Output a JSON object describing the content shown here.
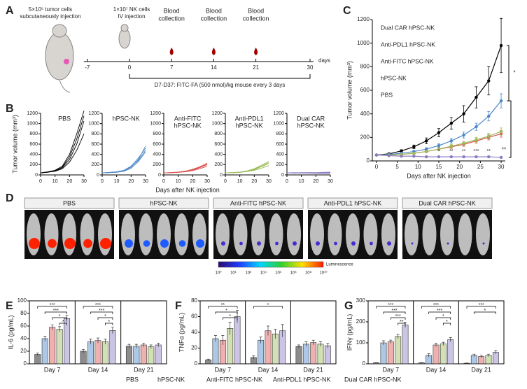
{
  "panel_labels": [
    "A",
    "B",
    "C",
    "D",
    "E",
    "F",
    "G"
  ],
  "timeline": {
    "tumor_note": [
      "5×10⁵ tumor cells",
      "subcutaneously injection"
    ],
    "nk_note": [
      "1×10⁷ NK cells",
      "IV injection"
    ],
    "blood_notes": [
      [
        "Blood",
        "collection"
      ],
      [
        "Blood",
        "collection"
      ],
      [
        "Blood",
        "collection"
      ]
    ],
    "ticks": [
      -7,
      0,
      7,
      14,
      21,
      30
    ],
    "unit": "days",
    "treatment": "D7-D37: FITC-FA (500 nmol)/kg mouse every 3 days"
  },
  "imaging": {
    "groups": [
      "PBS",
      "hPSC-NK",
      "Anti-FITC hPSC-NK",
      "Anti-PDL1 hPSC-NK",
      "Dual CAR hPSC-NK"
    ],
    "colorbar_ticks": [
      "10⁰",
      "10¹",
      "10²",
      "10⁴",
      "10⁵",
      "10⁶",
      "10⁸",
      "10¹⁰"
    ],
    "colorbar_label": "Luminescence"
  },
  "chart_data": [
    {
      "type": "line",
      "xlabel": "Days after NK injection",
      "ylabel": "Tumor volume (mm³)",
      "x": [
        0,
        3,
        6,
        9,
        12,
        15,
        18,
        21,
        24,
        27,
        30
      ],
      "xlim": [
        -1,
        31
      ],
      "xticks": [
        0,
        5,
        10,
        15,
        20,
        25,
        30
      ],
      "ylim": [
        0,
        1200
      ],
      "yticks": [
        0,
        200,
        400,
        600,
        800,
        1000,
        1200
      ],
      "series": [
        {
          "name": "PBS",
          "color": "#000000",
          "values": [
            50,
            60,
            85,
            120,
            170,
            240,
            320,
            400,
            540,
            680,
            980
          ],
          "errors": [
            5,
            8,
            10,
            15,
            25,
            35,
            50,
            70,
            90,
            120,
            230
          ]
        },
        {
          "name": "hPSC-NK",
          "color": "#4a86c8",
          "values": [
            50,
            55,
            65,
            80,
            100,
            130,
            170,
            220,
            290,
            380,
            510
          ],
          "errors": [
            5,
            6,
            8,
            10,
            12,
            15,
            20,
            25,
            30,
            40,
            60
          ]
        },
        {
          "name": "Anti-FITC hPSC-NK",
          "color": "#d9534f",
          "values": [
            50,
            50,
            55,
            65,
            80,
            100,
            120,
            140,
            170,
            200,
            230
          ],
          "errors": [
            5,
            5,
            6,
            8,
            10,
            12,
            14,
            16,
            18,
            22,
            28
          ]
        },
        {
          "name": "Anti-PDL1 hPSC-NK",
          "color": "#9bbb59",
          "values": [
            50,
            50,
            55,
            65,
            80,
            100,
            125,
            150,
            180,
            210,
            250
          ],
          "errors": [
            5,
            5,
            6,
            8,
            10,
            12,
            14,
            16,
            20,
            24,
            30
          ]
        },
        {
          "name": "Dual CAR hPSC-NK",
          "color": "#8e7cc3",
          "values": [
            50,
            45,
            40,
            40,
            35,
            35,
            35,
            35,
            35,
            35,
            30
          ],
          "errors": [
            5,
            5,
            5,
            5,
            4,
            4,
            4,
            4,
            4,
            4,
            4
          ]
        }
      ],
      "brackets": [
        {
          "from": 0,
          "to": 1,
          "label": "*"
        },
        {
          "from": 1,
          "to": 4,
          "label": "**"
        }
      ],
      "point_labels": [
        {
          "x": 15,
          "label": "*"
        },
        {
          "x": 18,
          "label": "**"
        },
        {
          "x": 21,
          "label": "**"
        },
        {
          "x": 24,
          "label": "***"
        },
        {
          "x": 27,
          "label": "**"
        }
      ]
    },
    {
      "type": "line",
      "title": [
        "PBS"
      ],
      "ylabel": "Tumor volume (mm³)",
      "color": "#000000",
      "x": [
        0,
        5,
        10,
        15,
        20,
        25,
        30
      ],
      "xlim": [
        0,
        30
      ],
      "xticks": [
        0,
        10,
        20,
        30
      ],
      "ylim": [
        0,
        1200
      ],
      "yticks": [
        0,
        200,
        400,
        600,
        800,
        1000,
        1200
      ],
      "series": [
        {
          "values": [
            40,
            55,
            80,
            150,
            350,
            700,
            1150
          ]
        },
        {
          "values": [
            40,
            60,
            90,
            170,
            400,
            800,
            1250
          ]
        },
        {
          "values": [
            40,
            50,
            75,
            140,
            300,
            600,
            1050
          ]
        },
        {
          "values": [
            40,
            55,
            70,
            120,
            250,
            480,
            800
          ]
        }
      ]
    },
    {
      "type": "line",
      "title": [
        "hPSC-NK"
      ],
      "color": "#4a86c8",
      "x": [
        0,
        5,
        10,
        15,
        20,
        25,
        30
      ],
      "xlim": [
        0,
        30
      ],
      "xticks": [
        0,
        10,
        20,
        30
      ],
      "ylim": [
        0,
        1200
      ],
      "yticks": [
        0,
        200,
        400,
        600,
        800,
        1000,
        1200
      ],
      "series": [
        {
          "values": [
            40,
            45,
            55,
            80,
            150,
            300,
            560
          ]
        },
        {
          "values": [
            40,
            45,
            60,
            90,
            170,
            330,
            520
          ]
        },
        {
          "values": [
            40,
            45,
            50,
            70,
            130,
            260,
            450
          ]
        },
        {
          "values": [
            40,
            50,
            60,
            85,
            160,
            280,
            480
          ]
        }
      ]
    },
    {
      "type": "line",
      "title": [
        "Anti-FITC",
        "hPSC-NK"
      ],
      "xlabel": "Days after NK injection",
      "color": "#d9534f",
      "x": [
        0,
        5,
        10,
        15,
        20,
        25,
        30
      ],
      "xlim": [
        0,
        30
      ],
      "xticks": [
        0,
        10,
        20,
        30
      ],
      "ylim": [
        0,
        1200
      ],
      "yticks": [
        0,
        200,
        400,
        600,
        800,
        1000,
        1200
      ],
      "series": [
        {
          "values": [
            40,
            45,
            55,
            75,
            110,
            160,
            230
          ]
        },
        {
          "values": [
            40,
            45,
            50,
            65,
            95,
            140,
            200
          ]
        },
        {
          "values": [
            40,
            40,
            50,
            60,
            85,
            120,
            170
          ]
        },
        {
          "values": [
            40,
            45,
            55,
            70,
            100,
            150,
            210
          ]
        }
      ]
    },
    {
      "type": "line",
      "title": [
        "Anti-PDL1",
        "hPSC-NK"
      ],
      "color": "#9bbb59",
      "x": [
        0,
        5,
        10,
        15,
        20,
        25,
        30
      ],
      "xlim": [
        0,
        30
      ],
      "xticks": [
        0,
        10,
        20,
        30
      ],
      "ylim": [
        0,
        1200
      ],
      "yticks": [
        0,
        200,
        400,
        600,
        800,
        1000,
        1200
      ],
      "series": [
        {
          "values": [
            40,
            45,
            55,
            80,
            120,
            190,
            260
          ]
        },
        {
          "values": [
            40,
            45,
            50,
            70,
            100,
            160,
            220
          ]
        },
        {
          "values": [
            40,
            40,
            50,
            65,
            90,
            130,
            180
          ]
        },
        {
          "values": [
            40,
            45,
            55,
            75,
            110,
            170,
            240
          ]
        }
      ]
    },
    {
      "type": "line",
      "title": [
        "Dual CAR",
        "hPSC-NK"
      ],
      "color": "#8e7cc3",
      "x": [
        0,
        5,
        10,
        15,
        20,
        25,
        30
      ],
      "xlim": [
        0,
        30
      ],
      "xticks": [
        0,
        10,
        20,
        30
      ],
      "ylim": [
        0,
        1200
      ],
      "yticks": [
        0,
        200,
        400,
        600,
        800,
        1000,
        1200
      ],
      "series": [
        {
          "values": [
            40,
            40,
            45,
            45,
            45,
            50,
            55
          ]
        },
        {
          "values": [
            40,
            45,
            40,
            40,
            40,
            40,
            35
          ]
        },
        {
          "values": [
            40,
            35,
            35,
            35,
            30,
            30,
            30
          ]
        },
        {
          "values": [
            40,
            40,
            40,
            45,
            40,
            40,
            45
          ]
        }
      ]
    },
    {
      "type": "grouped_bar",
      "ylabel": "IL-6 (pg/mL)",
      "categories": [
        "Day 7",
        "Day 14",
        "Day 21"
      ],
      "ylim": [
        0,
        100
      ],
      "yticks": [
        0,
        20,
        40,
        60,
        80,
        100
      ],
      "series": [
        {
          "name": "PBS",
          "color": "#000000",
          "values": [
            15,
            20,
            28
          ],
          "errors": [
            2,
            3,
            3
          ]
        },
        {
          "name": "hPSC-NK",
          "color": "#4a86c8",
          "values": [
            40,
            35,
            28
          ],
          "errors": [
            4,
            4,
            3
          ]
        },
        {
          "name": "Anti-FITC hPSC-NK",
          "color": "#d9534f",
          "values": [
            58,
            37,
            30
          ],
          "errors": [
            4,
            4,
            3
          ]
        },
        {
          "name": "Anti-PDL1 hPSC-NK",
          "color": "#9bbb59",
          "values": [
            55,
            35,
            27
          ],
          "errors": [
            4,
            4,
            3
          ]
        },
        {
          "name": "Dual CAR hPSC-NK",
          "color": "#8e7cc3",
          "values": [
            72,
            53,
            30
          ],
          "errors": [
            5,
            5,
            3
          ]
        }
      ],
      "brackets": [
        {
          "group": 0,
          "from": 0,
          "to": 4,
          "label": "***"
        },
        {
          "group": 0,
          "from": 1,
          "to": 4,
          "label": "***"
        },
        {
          "group": 0,
          "from": 2,
          "to": 4,
          "label": "*"
        },
        {
          "group": 0,
          "from": 3,
          "to": 4,
          "label": "*"
        },
        {
          "group": 1,
          "from": 0,
          "to": 4,
          "label": "***"
        },
        {
          "group": 1,
          "from": 1,
          "to": 4,
          "label": "***"
        },
        {
          "group": 1,
          "from": 2,
          "to": 4,
          "label": "*"
        },
        {
          "group": 1,
          "from": 3,
          "to": 4,
          "label": "*"
        }
      ]
    },
    {
      "type": "grouped_bar",
      "ylabel": "TNFα (pg/mL)",
      "categories": [
        "Day 7",
        "Day 14",
        "Day 21"
      ],
      "ylim": [
        0,
        80
      ],
      "yticks": [
        0,
        20,
        40,
        60,
        80
      ],
      "series": [
        {
          "color": "#000000",
          "values": [
            5,
            8,
            22
          ],
          "errors": [
            1,
            2,
            2
          ]
        },
        {
          "color": "#4a86c8",
          "values": [
            32,
            30,
            25
          ],
          "errors": [
            4,
            4,
            3
          ]
        },
        {
          "color": "#d9534f",
          "values": [
            30,
            42,
            27
          ],
          "errors": [
            6,
            6,
            3
          ]
        },
        {
          "color": "#9bbb59",
          "values": [
            45,
            38,
            25
          ],
          "errors": [
            8,
            6,
            3
          ]
        },
        {
          "color": "#8e7cc3",
          "values": [
            60,
            42,
            23
          ],
          "errors": [
            8,
            8,
            3
          ]
        }
      ],
      "brackets": [
        {
          "group": 0,
          "from": 0,
          "to": 4,
          "label": "**"
        },
        {
          "group": 0,
          "from": 1,
          "to": 4,
          "label": "*"
        },
        {
          "group": 0,
          "from": 2,
          "to": 4,
          "label": "*"
        },
        {
          "group": 1,
          "from": 0,
          "to": 4,
          "label": "*"
        }
      ]
    },
    {
      "type": "grouped_bar",
      "ylabel": "IFNγ (pg/mL)",
      "categories": [
        "Day 7",
        "Day 14",
        "Day 21"
      ],
      "ylim": [
        0,
        300
      ],
      "yticks": [
        0,
        100,
        200,
        300
      ],
      "series": [
        {
          "color": "#000000",
          "values": [
            5,
            5,
            3
          ],
          "errors": [
            1,
            1,
            1
          ]
        },
        {
          "color": "#4a86c8",
          "values": [
            100,
            40,
            40
          ],
          "errors": [
            10,
            8,
            6
          ]
        },
        {
          "color": "#d9534f",
          "values": [
            105,
            90,
            35
          ],
          "errors": [
            8,
            8,
            6
          ]
        },
        {
          "color": "#9bbb59",
          "values": [
            130,
            95,
            40
          ],
          "errors": [
            10,
            8,
            6
          ]
        },
        {
          "color": "#8e7cc3",
          "values": [
            185,
            115,
            55
          ],
          "errors": [
            12,
            10,
            8
          ]
        }
      ],
      "brackets": [
        {
          "group": 0,
          "from": 0,
          "to": 4,
          "label": "***"
        },
        {
          "group": 0,
          "from": 1,
          "to": 4,
          "label": "***"
        },
        {
          "group": 0,
          "from": 2,
          "to": 4,
          "label": "***"
        },
        {
          "group": 0,
          "from": 3,
          "to": 4,
          "label": "**"
        },
        {
          "group": 1,
          "from": 0,
          "to": 4,
          "label": "***"
        },
        {
          "group": 1,
          "from": 1,
          "to": 4,
          "label": "***"
        },
        {
          "group": 1,
          "from": 2,
          "to": 4,
          "label": "*"
        },
        {
          "group": 1,
          "from": 3,
          "to": 4,
          "label": "*"
        },
        {
          "group": 2,
          "from": 0,
          "to": 4,
          "label": "***"
        },
        {
          "group": 2,
          "from": 1,
          "to": 4,
          "label": "*"
        }
      ]
    }
  ]
}
